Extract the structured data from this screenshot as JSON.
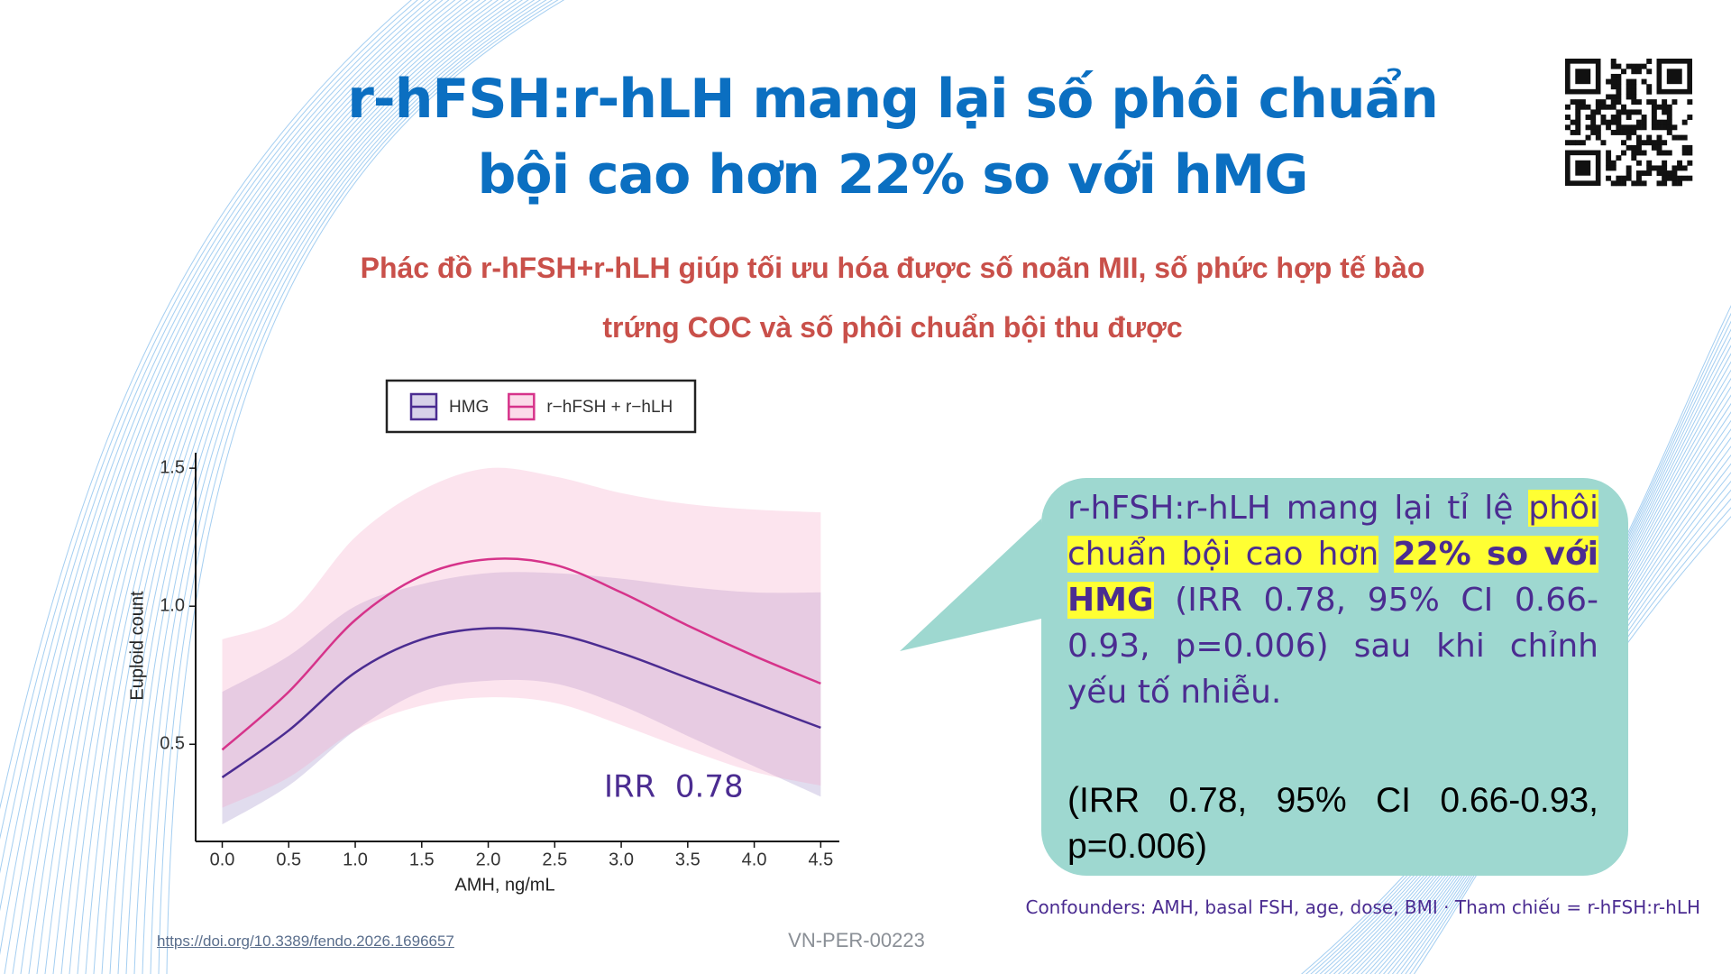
{
  "header": {
    "title_line1": "r-hFSH:r-hLH mang lại số phôi chuẩn",
    "title_line2": "bội cao hơn 22% so với hMG",
    "subtitle_line1": "Phác đồ r-hFSH+r-hLH giúp tối ưu hóa được số noãn MII, số phức hợp tế bào",
    "subtitle_line2": "trứng COC và số phôi chuẩn bội thu được"
  },
  "chart_data": {
    "type": "line",
    "x_label": "AMH, ng/mL",
    "y_label": "Euploid count",
    "annotation": "IRR  0.78",
    "x": [
      0,
      0.5,
      1.0,
      1.5,
      2.0,
      2.5,
      3.0,
      3.5,
      4.0,
      4.5
    ],
    "series": [
      {
        "name": "HMG",
        "color": "#4b2c91",
        "band_color": "#9c8cc8",
        "values": [
          0.38,
          0.55,
          0.76,
          0.88,
          0.92,
          0.9,
          0.83,
          0.74,
          0.65,
          0.56
        ],
        "lower": [
          0.21,
          0.35,
          0.55,
          0.69,
          0.73,
          0.72,
          0.64,
          0.53,
          0.42,
          0.31
        ],
        "upper": [
          0.69,
          0.82,
          1.0,
          1.08,
          1.12,
          1.12,
          1.1,
          1.07,
          1.05,
          1.05
        ]
      },
      {
        "name": "r−hFSH + r−hLH",
        "color": "#d6338a",
        "band_color": "#f4a6c8",
        "values": [
          0.48,
          0.69,
          0.95,
          1.11,
          1.17,
          1.15,
          1.05,
          0.93,
          0.82,
          0.72
        ],
        "lower": [
          0.27,
          0.38,
          0.55,
          0.64,
          0.67,
          0.65,
          0.57,
          0.48,
          0.4,
          0.35
        ],
        "upper": [
          0.88,
          0.97,
          1.25,
          1.42,
          1.5,
          1.47,
          1.41,
          1.37,
          1.35,
          1.34
        ]
      }
    ],
    "xlim": [
      -0.2,
      4.64
    ],
    "ylim": [
      0.148,
      1.556
    ],
    "xticks": [
      {
        "value": 0,
        "label": "0.0"
      },
      0.5,
      {
        "value": 1,
        "label": "1.0"
      },
      1.5,
      {
        "value": 2,
        "label": "2.0"
      },
      2.5,
      {
        "value": 3,
        "label": "3.0"
      },
      3.5,
      {
        "value": 4,
        "label": "4.0"
      },
      4.5
    ],
    "yticks": [
      0.5,
      {
        "value": 1,
        "label": "1.0"
      },
      1.5
    ],
    "grid": false,
    "legend": "top"
  },
  "callout": {
    "text_start": "r-hFSH:r-hLH mang lại tỉ lệ",
    "highlight": "phôi chuẩn bội cao hơn",
    "highlight_bold": "22% so với HMG",
    "text_end": "(IRR 0.78, 95% CI 0.66-0.93, p=0.006) sau khi chỉnh yếu tố nhiễu.",
    "note": "(IRR 0.78, 95% CI 0.66-0.93, p=0.006)"
  },
  "footer": {
    "confounders": "Confounders: AMH, basal FSH, age, dose, BMI · Tham chiếu = r-hFSH:r-hLH",
    "doi": "https://doi.org/10.3389/fendo.2026.1696657",
    "code": "VN-PER-00223"
  }
}
